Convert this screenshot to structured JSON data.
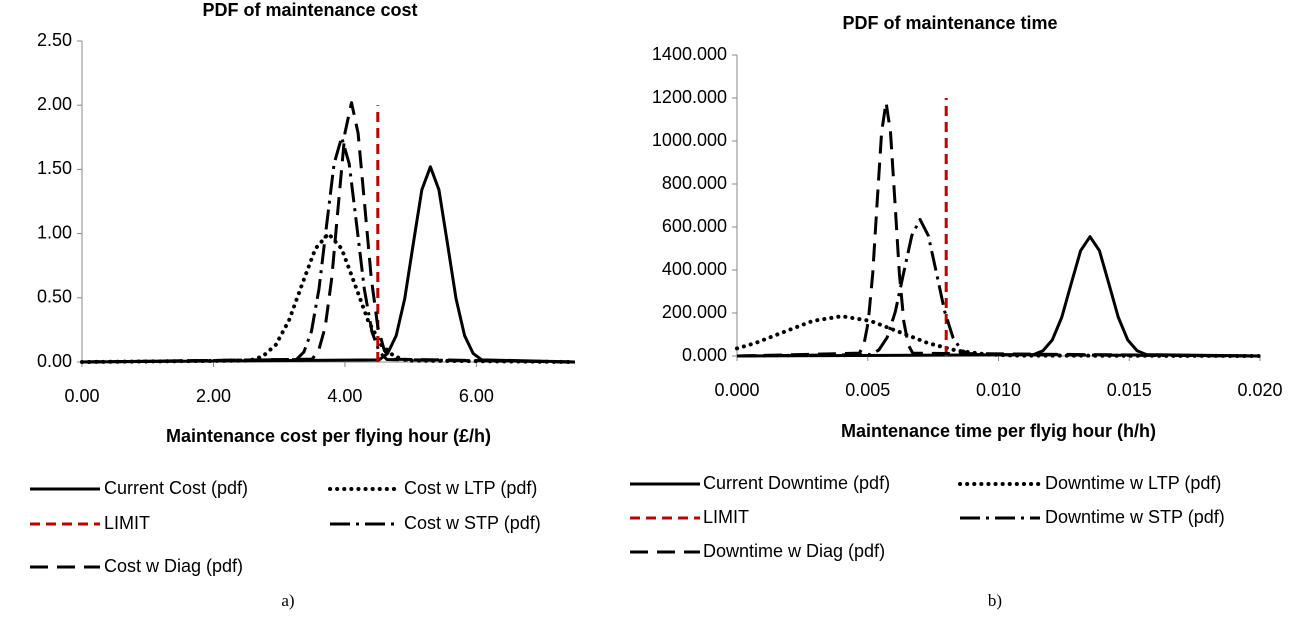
{
  "chart_data": [
    {
      "type": "line",
      "title": "PDF of maintenance cost",
      "x_label": "Maintenance cost per flying hour (£/h)",
      "caption": "a)",
      "xlim": [
        0,
        7.5
      ],
      "ylim": [
        0,
        2.5
      ],
      "xticks": [
        {
          "value": 0,
          "label": "0.00"
        },
        {
          "value": 2,
          "label": "2.00"
        },
        {
          "value": 4,
          "label": "4.00"
        },
        {
          "value": 6,
          "label": "6.00"
        }
      ],
      "yticks": [
        {
          "value": 0,
          "label": "0.00"
        },
        {
          "value": 0.5,
          "label": "0.50"
        },
        {
          "value": 1,
          "label": "1.00"
        },
        {
          "value": 1.5,
          "label": "1.50"
        },
        {
          "value": 2,
          "label": "2.00"
        },
        {
          "value": 2.5,
          "label": "2.50"
        }
      ],
      "series": [
        {
          "name": "Current Cost (pdf)",
          "color": "#000000",
          "dash": "solid",
          "x": [
            0,
            4.52,
            4.65,
            4.78,
            4.91,
            5.04,
            5.17,
            5.3,
            5.43,
            5.56,
            5.69,
            5.82,
            5.95,
            6.08,
            7.5
          ],
          "values": [
            0,
            0.017,
            0.067,
            0.206,
            0.494,
            0.922,
            1.341,
            1.52,
            1.341,
            0.922,
            0.494,
            0.206,
            0.067,
            0.017,
            0
          ]
        },
        {
          "name": "Cost w LTP (pdf)",
          "color": "#000000",
          "dash": "dot",
          "x": [
            0,
            2.55,
            2.75,
            2.95,
            3.15,
            3.35,
            3.55,
            3.75,
            3.95,
            4.15,
            4.35,
            4.55,
            4.75,
            4.95,
            7.5
          ],
          "values": [
            0,
            0.011,
            0.044,
            0.135,
            0.325,
            0.607,
            0.882,
            1.0,
            0.882,
            0.607,
            0.325,
            0.135,
            0.044,
            0.011,
            0
          ]
        },
        {
          "name": "LIMIT",
          "color": "#c00000",
          "dash": "dash",
          "x": [
            4.5,
            4.5
          ],
          "values": [
            0,
            2.0
          ]
        },
        {
          "name": "Cost w STP (pdf)",
          "color": "#000000",
          "dash": "dashdot",
          "x": [
            0,
            3.26,
            3.375,
            3.49,
            3.605,
            3.72,
            3.835,
            3.95,
            4.065,
            4.18,
            4.295,
            4.41,
            4.525,
            4.64,
            7.5
          ],
          "values": [
            0,
            0.019,
            0.077,
            0.237,
            0.568,
            1.061,
            1.544,
            1.75,
            1.544,
            1.061,
            0.568,
            0.237,
            0.077,
            0.019,
            0
          ]
        },
        {
          "name": "Cost w Diag (pdf)",
          "color": "#000000",
          "dash": "longdash",
          "x": [
            0,
            3.5,
            3.6,
            3.7,
            3.8,
            3.9,
            4.0,
            4.1,
            4.2,
            4.3,
            4.4,
            4.5,
            4.6,
            4.7,
            7.5
          ],
          "values": [
            0,
            0.022,
            0.089,
            0.273,
            0.656,
            1.225,
            1.783,
            2.02,
            1.783,
            1.225,
            0.656,
            0.273,
            0.089,
            0.022,
            0
          ]
        }
      ]
    },
    {
      "type": "line",
      "title": "PDF of maintenance time",
      "x_label": "Maintenance time per flyig hour (h/h)",
      "caption": "b)",
      "xlim": [
        0,
        0.02
      ],
      "ylim": [
        0,
        1400
      ],
      "xticks": [
        {
          "value": 0,
          "label": "0.000"
        },
        {
          "value": 0.005,
          "label": "0.005"
        },
        {
          "value": 0.01,
          "label": "0.010"
        },
        {
          "value": 0.015,
          "label": "0.015"
        },
        {
          "value": 0.02,
          "label": "0.020"
        }
      ],
      "yticks": [
        {
          "value": 0,
          "label": "0.000"
        },
        {
          "value": 200,
          "label": "200.000"
        },
        {
          "value": 400,
          "label": "400.000"
        },
        {
          "value": 600,
          "label": "600.000"
        },
        {
          "value": 800,
          "label": "800.000"
        },
        {
          "value": 1000,
          "label": "1000.000"
        },
        {
          "value": 1200,
          "label": "1200.000"
        },
        {
          "value": 1400,
          "label": "1400.000"
        }
      ],
      "series": [
        {
          "name": "Current Downtime (pdf)",
          "color": "#000000",
          "dash": "solid",
          "x": [
            0,
            0.01134,
            0.0117,
            0.01206,
            0.01242,
            0.01278,
            0.01314,
            0.0135,
            0.01386,
            0.01422,
            0.01458,
            0.01494,
            0.0153,
            0.01566,
            0.02
          ],
          "values": [
            0,
            6.2,
            24.4,
            75.1,
            180.2,
            336.6,
            489.8,
            555,
            489.8,
            336.6,
            180.2,
            75.1,
            24.4,
            6.2,
            0
          ]
        },
        {
          "name": "Downtime w LTP (pdf)",
          "color": "#000000",
          "dash": "dot",
          "x": [
            0,
            0.0007,
            0.0018,
            0.0029,
            0.004,
            0.0051,
            0.0062,
            0.0073,
            0.0084,
            0.0095,
            0.0106,
            0.02
          ],
          "values": [
            35.4,
            60.1,
            112.2,
            163.3,
            185,
            163.3,
            112.2,
            60.1,
            25.0,
            8.1,
            2.1,
            0
          ]
        },
        {
          "name": "LIMIT",
          "color": "#c00000",
          "dash": "dash",
          "x": [
            0.008,
            0.008
          ],
          "values": [
            0,
            1200
          ]
        },
        {
          "name": "Downtime w STP (pdf)",
          "color": "#000000",
          "dash": "dashdot",
          "x": [
            0,
            0.00511,
            0.005425,
            0.00574,
            0.006055,
            0.00637,
            0.006685,
            0.007,
            0.007315,
            0.00763,
            0.007945,
            0.00826,
            0.008575,
            0.00889,
            0.02
          ],
          "values": [
            0,
            7.0,
            27.9,
            85.9,
            206.2,
            385.1,
            560.4,
            635,
            560.4,
            385.1,
            206.2,
            85.9,
            27.9,
            7.0,
            0
          ]
        },
        {
          "name": "Downtime w Diag (pdf)",
          "color": "#000000",
          "dash": "longdash",
          "x": [
            0,
            0.00468,
            0.00485,
            0.00502,
            0.00519,
            0.00536,
            0.00553,
            0.0057,
            0.00587,
            0.00604,
            0.00621,
            0.00638,
            0.00655,
            0.00672,
            0.02
          ],
          "values": [
            0,
            13.1,
            51.8,
            159.7,
            383.1,
            715.7,
            1041.4,
            1180,
            1041.4,
            715.7,
            383.1,
            159.7,
            51.8,
            13.1,
            0
          ]
        }
      ]
    }
  ]
}
